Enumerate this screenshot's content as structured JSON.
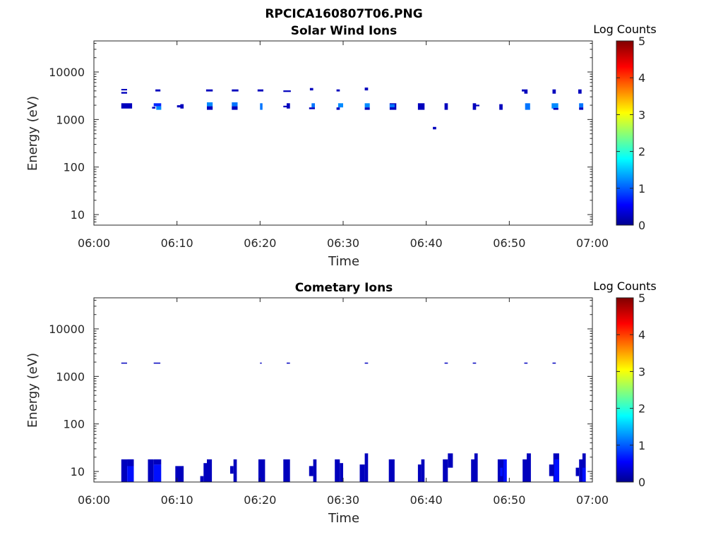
{
  "figure_title": "RPCICA160807T06.PNG",
  "colors": {
    "axis": "#262626",
    "data_dark": "#00008f",
    "data_mid": "#0000ff",
    "data_light": "#0080ff",
    "data_cyan": "#00bfff"
  },
  "colorbar": {
    "label": "Log Counts",
    "ticks": [
      "0",
      "1",
      "2",
      "3",
      "4",
      "5"
    ],
    "range": [
      0,
      5
    ],
    "colormap": "jet"
  },
  "chart_data": [
    {
      "type": "heatmap",
      "title": "Solar Wind Ions",
      "xlabel": "Time",
      "ylabel": "Energy (eV)",
      "x_ticks": [
        "06:00",
        "06:10",
        "06:20",
        "06:30",
        "06:40",
        "06:50",
        "07:00"
      ],
      "xlim": [
        0,
        60
      ],
      "ylim": [
        6,
        45000
      ],
      "yscale": "log",
      "y_ticks": [
        "10",
        "100",
        "1000",
        "10000"
      ],
      "grid": false,
      "cells": [
        [
          3.3,
          4.6,
          1700,
          2200,
          0.3
        ],
        [
          3.3,
          4.0,
          3500,
          3800,
          0.3
        ],
        [
          3.3,
          4.0,
          4100,
          4400,
          0.3
        ],
        [
          7.4,
          8.0,
          3900,
          4300,
          0.3
        ],
        [
          7.2,
          8.1,
          1900,
          2200,
          0.8
        ],
        [
          7.5,
          8.1,
          1600,
          1900,
          1.3
        ],
        [
          7.0,
          7.4,
          1700,
          1850,
          0.3
        ],
        [
          10.4,
          10.8,
          1700,
          2100,
          0.3
        ],
        [
          10.0,
          10.5,
          1800,
          2000,
          0.3
        ],
        [
          13.5,
          14.3,
          3900,
          4300,
          0.3
        ],
        [
          13.6,
          14.3,
          1900,
          2300,
          1.3
        ],
        [
          13.6,
          14.3,
          1600,
          1900,
          0.3
        ],
        [
          16.6,
          17.4,
          3900,
          4300,
          0.3
        ],
        [
          16.6,
          17.3,
          1900,
          2300,
          1.2
        ],
        [
          16.6,
          17.3,
          1600,
          1900,
          0.3
        ],
        [
          19.7,
          20.4,
          3900,
          4300,
          0.3
        ],
        [
          20.0,
          20.3,
          1600,
          2200,
          1.2
        ],
        [
          22.8,
          23.7,
          3800,
          4100,
          0.3
        ],
        [
          23.2,
          23.6,
          1700,
          2200,
          0.3
        ],
        [
          22.8,
          23.2,
          1800,
          1950,
          0.3
        ],
        [
          26.0,
          26.4,
          4100,
          4600,
          0.3
        ],
        [
          26.2,
          26.6,
          1800,
          2200,
          1.2
        ],
        [
          25.9,
          26.6,
          1650,
          1800,
          0.3
        ],
        [
          29.2,
          29.6,
          3900,
          4300,
          0.3
        ],
        [
          29.4,
          30.0,
          1800,
          2200,
          1.3
        ],
        [
          29.2,
          29.6,
          1600,
          1800,
          0.3
        ],
        [
          32.6,
          33.0,
          4100,
          4700,
          0.3
        ],
        [
          32.6,
          33.2,
          1800,
          2200,
          1.3
        ],
        [
          32.6,
          33.2,
          1600,
          1800,
          0.3
        ],
        [
          35.6,
          36.4,
          1600,
          2200,
          0.3
        ],
        [
          35.6,
          36.2,
          1800,
          2100,
          1.2
        ],
        [
          39.0,
          39.8,
          1600,
          2200,
          0.3
        ],
        [
          42.2,
          42.6,
          1600,
          2200,
          0.3
        ],
        [
          40.8,
          41.2,
          620,
          700,
          0.3
        ],
        [
          45.6,
          46.0,
          1600,
          2200,
          0.3
        ],
        [
          45.9,
          46.4,
          1900,
          2050,
          0.3
        ],
        [
          48.8,
          49.2,
          1600,
          2100,
          0.3
        ],
        [
          51.5,
          52.2,
          3900,
          4300,
          0.3
        ],
        [
          51.8,
          52.2,
          3500,
          3900,
          0.3
        ],
        [
          51.9,
          52.5,
          1600,
          2200,
          1.2
        ],
        [
          55.2,
          55.6,
          3500,
          4300,
          0.3
        ],
        [
          55.1,
          55.9,
          1700,
          2200,
          1.3
        ],
        [
          55.3,
          55.9,
          1600,
          1750,
          0.3
        ],
        [
          58.3,
          58.7,
          3500,
          4300,
          0.3
        ],
        [
          58.4,
          58.9,
          1800,
          2200,
          1.2
        ],
        [
          58.4,
          58.9,
          1600,
          1800,
          0.3
        ]
      ]
    },
    {
      "type": "heatmap",
      "title": "Cometary Ions",
      "xlabel": "Time",
      "ylabel": "Energy (eV)",
      "x_ticks": [
        "06:00",
        "06:10",
        "06:20",
        "06:30",
        "06:40",
        "06:50",
        "07:00"
      ],
      "xlim": [
        0,
        60
      ],
      "ylim": [
        6,
        45000
      ],
      "yscale": "log",
      "y_ticks": [
        "10",
        "100",
        "1000",
        "10000"
      ],
      "grid": false,
      "cells": [
        [
          3.3,
          4.0,
          1850,
          1950,
          0.3
        ],
        [
          7.2,
          8.0,
          1850,
          1950,
          0.3
        ],
        [
          20.0,
          20.2,
          1850,
          1950,
          0.3
        ],
        [
          23.2,
          23.6,
          1850,
          1950,
          0.3
        ],
        [
          32.6,
          33.0,
          1850,
          1950,
          0.3
        ],
        [
          42.2,
          42.6,
          1850,
          1950,
          0.3
        ],
        [
          45.6,
          46.0,
          1850,
          1950,
          0.3
        ],
        [
          51.8,
          52.2,
          1850,
          1950,
          0.3
        ],
        [
          55.2,
          55.6,
          1850,
          1950,
          0.3
        ],
        [
          3.3,
          4.0,
          6,
          18,
          0.3
        ],
        [
          4.0,
          4.8,
          6,
          18,
          0.7
        ],
        [
          4.0,
          4.8,
          13,
          18,
          0.3
        ],
        [
          6.5,
          7.2,
          6,
          18,
          0.3
        ],
        [
          7.2,
          8.1,
          6,
          14,
          0.7
        ],
        [
          7.2,
          8.1,
          14,
          18,
          0.3
        ],
        [
          9.8,
          10.8,
          6,
          13,
          0.3
        ],
        [
          12.8,
          13.2,
          6,
          8,
          0.3
        ],
        [
          13.2,
          13.6,
          6,
          15,
          0.3
        ],
        [
          13.6,
          14.2,
          6,
          18,
          0.3
        ],
        [
          16.4,
          16.8,
          9,
          13,
          0.3
        ],
        [
          16.8,
          17.2,
          6,
          18,
          0.3
        ],
        [
          19.8,
          20.6,
          6,
          18,
          0.3
        ],
        [
          22.8,
          23.6,
          6,
          18,
          0.3
        ],
        [
          25.9,
          26.4,
          8,
          13,
          0.3
        ],
        [
          26.4,
          26.8,
          6,
          18,
          0.3
        ],
        [
          29.0,
          29.6,
          6,
          18,
          0.3
        ],
        [
          29.6,
          30.0,
          6,
          15,
          0.3
        ],
        [
          32.0,
          32.6,
          6,
          14,
          0.3
        ],
        [
          32.6,
          33.0,
          6,
          24,
          0.3
        ],
        [
          35.5,
          36.2,
          6,
          18,
          0.3
        ],
        [
          39.0,
          39.4,
          6,
          14,
          0.3
        ],
        [
          39.4,
          39.8,
          6,
          18,
          0.3
        ],
        [
          42.0,
          42.6,
          6,
          18,
          0.3
        ],
        [
          42.6,
          43.2,
          12,
          24,
          0.3
        ],
        [
          45.4,
          46.0,
          6,
          18,
          0.3
        ],
        [
          45.8,
          46.2,
          6,
          24,
          0.3
        ],
        [
          48.6,
          49.6,
          6,
          18,
          0.3
        ],
        [
          48.9,
          49.2,
          8,
          12,
          0.7
        ],
        [
          49.3,
          49.7,
          6,
          18,
          0.7
        ],
        [
          51.6,
          52.2,
          6,
          18,
          0.3
        ],
        [
          52.1,
          52.6,
          6,
          24,
          0.3
        ],
        [
          54.8,
          55.4,
          8,
          14,
          0.3
        ],
        [
          55.3,
          56.0,
          6,
          24,
          0.3
        ],
        [
          55.4,
          56.0,
          6,
          18,
          0.7
        ],
        [
          58.0,
          58.4,
          8,
          12,
          0.3
        ],
        [
          58.4,
          59.0,
          6,
          18,
          0.3
        ],
        [
          58.8,
          59.2,
          6,
          24,
          0.3
        ],
        [
          58.8,
          59.2,
          6,
          12,
          0.7
        ]
      ]
    }
  ]
}
